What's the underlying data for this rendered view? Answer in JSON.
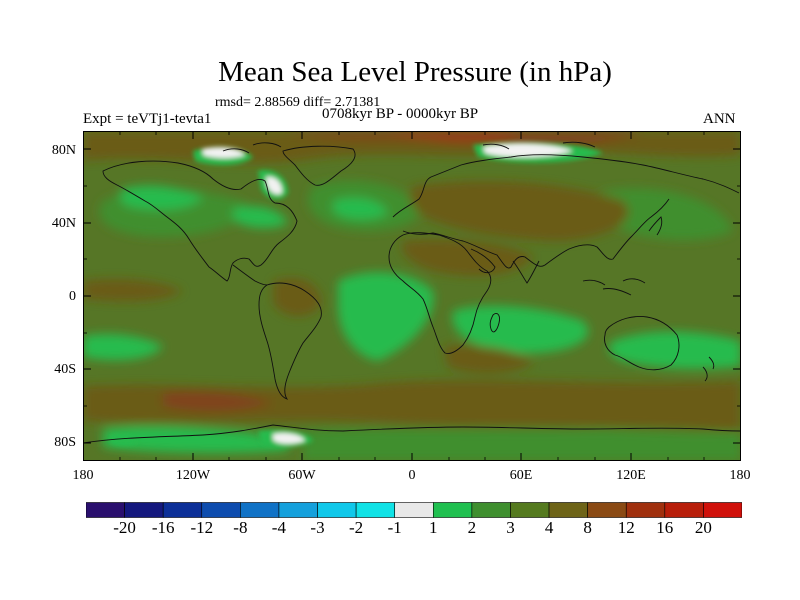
{
  "title": "Mean Sea Level Pressure (in hPa)",
  "stats": "rmsd= 2.88569 diff= 2.71381",
  "experiment": "Expt = teVTj1-tevta1",
  "period": "0708kyr BP - 0000kyr BP",
  "season": "ANN",
  "lat_labels": [
    "80N",
    "40N",
    "0",
    "40S",
    "80S"
  ],
  "lon_labels": [
    "180",
    "120W",
    "60W",
    "0",
    "60E",
    "120E",
    "180"
  ],
  "colorbar": {
    "labels": [
      "-20",
      "-16",
      "-12",
      "-8",
      "-4",
      "-3",
      "-2",
      "-1",
      "1",
      "2",
      "3",
      "4",
      "8",
      "12",
      "16",
      "20"
    ],
    "colors": [
      "#2a0f6e",
      "#14187e",
      "#0c2f98",
      "#0d4cae",
      "#1072c6",
      "#14a0dc",
      "#10c8ea",
      "#10e2e6",
      "#e8e8e8",
      "#20c050",
      "#3f8f2f",
      "#557a1f",
      "#6e6418",
      "#8a4a14",
      "#a0300e",
      "#b81e0a",
      "#d0100a"
    ]
  },
  "map_colors": {
    "ocean_base": "#567626",
    "light_green": "#27bb4d",
    "medium_green": "#3f8f2f",
    "brown": "#6a5c17",
    "dark_brown": "#80431a",
    "red_brown": "#9a3418",
    "white": "#f2f2f2",
    "coast": "#101010"
  }
}
